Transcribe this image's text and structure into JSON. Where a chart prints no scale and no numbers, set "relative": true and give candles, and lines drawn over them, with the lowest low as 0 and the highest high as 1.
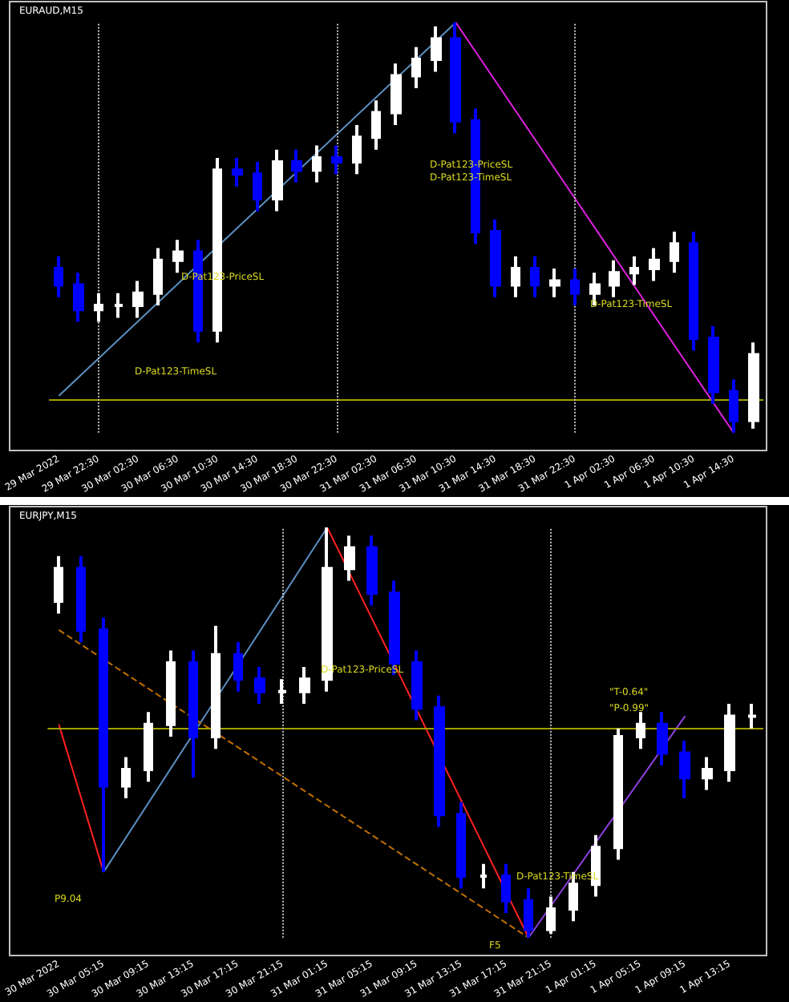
{
  "chart_data": [
    {
      "type": "candlestick",
      "title": "EURAUD,M15",
      "relative": true,
      "legend": false,
      "tick_labels": "x",
      "grid": false,
      "marker": "none",
      "categories": [
        "29 Mar 2022",
        null,
        "29 Mar 22:30",
        null,
        "30 Mar 02:30",
        null,
        "30 Mar 06:30",
        null,
        "30 Mar 10:30",
        null,
        "30 Mar 14:30",
        null,
        "30 Mar 18:30",
        null,
        "30 Mar 22:30",
        null,
        "31 Mar 02:30",
        null,
        "31 Mar 06:30",
        null,
        "31 Mar 10:30",
        null,
        "31 Mar 14:30",
        null,
        "31 Mar 18:30",
        null,
        "31 Mar 22:30",
        null,
        "1 Apr 02:30",
        null,
        "1 Apr 06:30",
        null,
        "1 Apr 10:30",
        null,
        "1 Apr 14:30",
        null
      ],
      "ohlc": [
        [
          0.4,
          0.43,
          0.33,
          0.36
        ],
        [
          0.36,
          0.39,
          0.27,
          0.3
        ],
        [
          0.3,
          0.34,
          0.27,
          0.31
        ],
        [
          0.31,
          0.34,
          0.28,
          0.31
        ],
        [
          0.31,
          0.37,
          0.28,
          0.34
        ],
        [
          0.34,
          0.45,
          0.31,
          0.42
        ],
        [
          0.42,
          0.47,
          0.39,
          0.44
        ],
        [
          0.44,
          0.47,
          0.22,
          0.25
        ],
        [
          0.25,
          0.67,
          0.22,
          0.64
        ],
        [
          0.64,
          0.67,
          0.6,
          0.63
        ],
        [
          0.63,
          0.66,
          0.54,
          0.57
        ],
        [
          0.57,
          0.69,
          0.54,
          0.66
        ],
        [
          0.66,
          0.69,
          0.61,
          0.64
        ],
        [
          0.64,
          0.7,
          0.61,
          0.67
        ],
        [
          0.67,
          0.7,
          0.63,
          0.66
        ],
        [
          0.66,
          0.75,
          0.63,
          0.72
        ],
        [
          0.72,
          0.81,
          0.69,
          0.78
        ],
        [
          0.78,
          0.9,
          0.75,
          0.87
        ],
        [
          0.87,
          0.94,
          0.84,
          0.91
        ],
        [
          0.91,
          0.99,
          0.88,
          0.96
        ],
        [
          0.96,
          1.0,
          0.73,
          0.76
        ],
        [
          0.76,
          0.79,
          0.46,
          0.49
        ],
        [
          0.49,
          0.52,
          0.33,
          0.36
        ],
        [
          0.36,
          0.43,
          0.33,
          0.4
        ],
        [
          0.4,
          0.43,
          0.33,
          0.36
        ],
        [
          0.36,
          0.4,
          0.33,
          0.37
        ],
        [
          0.37,
          0.4,
          0.31,
          0.34
        ],
        [
          0.34,
          0.39,
          0.31,
          0.36
        ],
        [
          0.36,
          0.42,
          0.33,
          0.39
        ],
        [
          0.39,
          0.43,
          0.36,
          0.4
        ],
        [
          0.4,
          0.45,
          0.37,
          0.42
        ],
        [
          0.42,
          0.49,
          0.39,
          0.46
        ],
        [
          0.46,
          0.49,
          0.2,
          0.23
        ],
        [
          0.23,
          0.26,
          0.07,
          0.1
        ],
        [
          0.1,
          0.13,
          0.0,
          0.03
        ],
        [
          0.03,
          0.22,
          0.01,
          0.19
        ]
      ],
      "series": [
        {
          "type": "line",
          "color": "#5b8fc0",
          "line_style": "solid",
          "values": [
            0.09,
            null,
            null,
            null,
            null,
            null,
            null,
            null,
            null,
            null,
            null,
            null,
            null,
            null,
            null,
            null,
            null,
            null,
            null,
            null,
            1.0,
            null,
            null,
            null,
            null,
            null,
            null,
            null,
            null,
            null,
            null,
            null,
            null,
            null,
            null,
            null
          ]
        },
        {
          "type": "line",
          "color": "#e020e0",
          "line_style": "solid",
          "values": [
            null,
            null,
            null,
            null,
            null,
            null,
            null,
            null,
            null,
            null,
            null,
            null,
            null,
            null,
            null,
            null,
            null,
            null,
            null,
            null,
            1.0,
            null,
            null,
            null,
            null,
            null,
            null,
            null,
            null,
            null,
            null,
            null,
            null,
            null,
            0.0,
            null
          ]
        }
      ],
      "ref_lines": [
        {
          "axis": "y",
          "value": 0.08,
          "color": "#a0a000",
          "line_style": "solid"
        },
        {
          "axis": "x",
          "value": "29 Mar 22:30",
          "color": "#c0c0c0",
          "line_style": "dotted"
        },
        {
          "axis": "x",
          "value": "30 Mar 22:30",
          "color": "#c0c0c0",
          "line_style": "dotted"
        },
        {
          "axis": "x",
          "value": "31 Mar 22:30",
          "color": "#c0c0c0",
          "line_style": "dotted"
        }
      ],
      "annotations": [
        "D-Pat123-PriceSL",
        "D-Pat123-TimeSL",
        "D-Pat123-PriceSL",
        "D-Pat123-TimeSL",
        "D-Pat123-TimeSL"
      ]
    },
    {
      "type": "candlestick",
      "title": "EURJPY,M15",
      "relative": true,
      "legend": false,
      "tick_labels": "x",
      "grid": false,
      "marker": "none",
      "categories": [
        "30 Mar 2022",
        null,
        "30 Mar 05:15",
        null,
        "30 Mar 09:15",
        null,
        "30 Mar 13:15",
        null,
        "30 Mar 17:15",
        null,
        "30 Mar 21:15",
        null,
        "31 Mar 01:15",
        null,
        "31 Mar 05:15",
        null,
        "31 Mar 09:15",
        null,
        "31 Mar 13:15",
        null,
        "31 Mar 17:15",
        null,
        "31 Mar 21:15",
        null,
        "1 Apr 01:15",
        null,
        "1 Apr 05:15",
        null,
        "1 Apr 09:15",
        null,
        "1 Apr 13:15",
        null
      ],
      "ohlc": [
        [
          0.82,
          0.93,
          0.79,
          0.9
        ],
        [
          0.9,
          0.93,
          0.72,
          0.75
        ],
        [
          0.75,
          0.78,
          0.16,
          0.37
        ],
        [
          0.37,
          0.44,
          0.34,
          0.41
        ],
        [
          0.41,
          0.55,
          0.38,
          0.52
        ],
        [
          0.52,
          0.7,
          0.49,
          0.67
        ],
        [
          0.67,
          0.7,
          0.39,
          0.49
        ],
        [
          0.49,
          0.76,
          0.46,
          0.69
        ],
        [
          0.69,
          0.72,
          0.6,
          0.63
        ],
        [
          0.63,
          0.66,
          0.57,
          0.6
        ],
        [
          0.6,
          0.63,
          0.57,
          0.6
        ],
        [
          0.6,
          0.66,
          0.57,
          0.63
        ],
        [
          0.63,
          1.0,
          0.6,
          0.9
        ],
        [
          0.9,
          0.98,
          0.87,
          0.95
        ],
        [
          0.95,
          0.98,
          0.81,
          0.84
        ],
        [
          0.84,
          0.87,
          0.64,
          0.67
        ],
        [
          0.67,
          0.7,
          0.53,
          0.56
        ],
        [
          0.56,
          0.59,
          0.27,
          0.3
        ],
        [
          0.3,
          0.33,
          0.12,
          0.15
        ],
        [
          0.15,
          0.18,
          0.12,
          0.15
        ],
        [
          0.15,
          0.18,
          0.06,
          0.09
        ],
        [
          0.09,
          0.12,
          0.0,
          0.02
        ],
        [
          0.02,
          0.1,
          0.01,
          0.07
        ],
        [
          0.07,
          0.16,
          0.04,
          0.13
        ],
        [
          0.13,
          0.25,
          0.1,
          0.22
        ],
        [
          0.22,
          0.51,
          0.19,
          0.49
        ],
        [
          0.49,
          0.55,
          0.46,
          0.52
        ],
        [
          0.52,
          0.55,
          0.42,
          0.45
        ],
        [
          0.45,
          0.48,
          0.34,
          0.39
        ],
        [
          0.39,
          0.44,
          0.36,
          0.41
        ],
        [
          0.41,
          0.57,
          0.38,
          0.54
        ],
        [
          0.54,
          0.57,
          0.51,
          0.54
        ]
      ],
      "series": [
        {
          "type": "line",
          "color": "#ff2020",
          "line_style": "solid",
          "values": [
            0.52,
            null,
            0.16,
            null,
            null,
            null,
            null,
            null,
            null,
            null,
            null,
            null,
            null,
            null,
            null,
            null,
            null,
            null,
            null,
            null,
            null,
            null,
            null,
            null,
            null,
            null,
            null,
            null,
            null,
            null,
            null,
            null
          ]
        },
        {
          "type": "line",
          "color": "#5b8fc0",
          "line_style": "solid",
          "values": [
            null,
            null,
            0.16,
            null,
            null,
            null,
            null,
            null,
            null,
            null,
            null,
            null,
            1.0,
            null,
            null,
            null,
            null,
            null,
            null,
            null,
            null,
            null,
            null,
            null,
            null,
            null,
            null,
            null,
            null,
            null,
            null,
            null
          ]
        },
        {
          "type": "line",
          "color": "#ff2020",
          "line_style": "solid",
          "values": [
            null,
            null,
            null,
            null,
            null,
            null,
            null,
            null,
            null,
            null,
            null,
            null,
            1.0,
            null,
            null,
            null,
            null,
            null,
            null,
            null,
            null,
            0.0,
            null,
            null,
            null,
            null,
            null,
            null,
            null,
            null,
            null,
            null
          ]
        },
        {
          "type": "line",
          "color": "#c07000",
          "line_style": "dashed",
          "values": [
            0.75,
            null,
            null,
            null,
            null,
            null,
            null,
            null,
            null,
            null,
            null,
            null,
            null,
            null,
            null,
            null,
            null,
            null,
            null,
            null,
            null,
            0.0,
            null,
            null,
            null,
            null,
            null,
            null,
            null,
            null,
            null,
            null
          ]
        },
        {
          "type": "line",
          "color": "#9040e0",
          "line_style": "solid",
          "values": [
            null,
            null,
            null,
            null,
            null,
            null,
            null,
            null,
            null,
            null,
            null,
            null,
            null,
            null,
            null,
            null,
            null,
            null,
            null,
            null,
            null,
            0.0,
            null,
            null,
            null,
            null,
            null,
            null,
            0.54,
            null,
            null,
            null
          ]
        }
      ],
      "ref_lines": [
        {
          "axis": "y",
          "value": 0.51,
          "color": "#a0a000",
          "line_style": "solid"
        },
        {
          "axis": "x",
          "value": "30 Mar 21:15",
          "color": "#c0c0c0",
          "line_style": "dotted"
        },
        {
          "axis": "x",
          "value": "31 Mar 21:15",
          "color": "#c0c0c0",
          "line_style": "dotted"
        }
      ],
      "annotations": [
        "D-Pat123-PriceSL",
        "\"T-0.64\"",
        "\"P-0.99\"",
        "P9.04",
        "F5",
        "D-Pat123-TimeSL"
      ]
    }
  ]
}
